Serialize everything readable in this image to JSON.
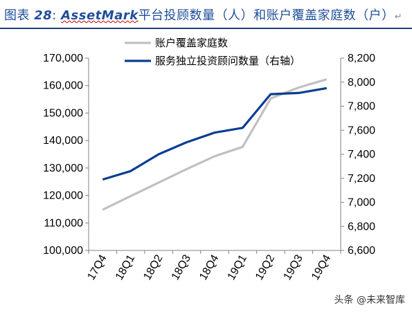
{
  "figure": {
    "label": "图表",
    "number": "28",
    "colon": ":",
    "brand": "AssetMark",
    "caption": "平台投顾数量（人）和账户覆盖家庭数（户）",
    "para_mark": "↵"
  },
  "watermark": {
    "text": "头条 @未来智库"
  },
  "chart_data": {
    "type": "line",
    "categories": [
      "17Q4",
      "18Q1",
      "18Q2",
      "18Q3",
      "18Q4",
      "19Q1",
      "19Q2",
      "19Q3",
      "19Q4"
    ],
    "series": [
      {
        "name": "账户覆盖家庭数",
        "axis": "left",
        "color": "#c0c0c0",
        "values": [
          114800,
          119800,
          124700,
          129600,
          134300,
          137700,
          155300,
          159300,
          162300
        ]
      },
      {
        "name": "服务独立投资顾问数量（右轴）",
        "axis": "right",
        "color": "#0a3d91",
        "values": [
          7190,
          7260,
          7400,
          7500,
          7580,
          7620,
          7900,
          7910,
          7950
        ]
      }
    ],
    "y_left": {
      "min": 100000,
      "max": 170000,
      "ticks": [
        "100,000",
        "110,000",
        "120,000",
        "130,000",
        "140,000",
        "150,000",
        "160,000",
        "170,000"
      ],
      "tick_values": [
        100000,
        110000,
        120000,
        130000,
        140000,
        150000,
        160000,
        170000
      ]
    },
    "y_right": {
      "min": 6600,
      "max": 8200,
      "ticks": [
        "6,600",
        "6,800",
        "7,000",
        "7,200",
        "7,400",
        "7,600",
        "7,800",
        "8,000",
        "8,200"
      ],
      "tick_values": [
        6600,
        6800,
        7000,
        7200,
        7400,
        7600,
        7800,
        8000,
        8200
      ]
    },
    "legend_position": "top-center",
    "grid": false
  }
}
